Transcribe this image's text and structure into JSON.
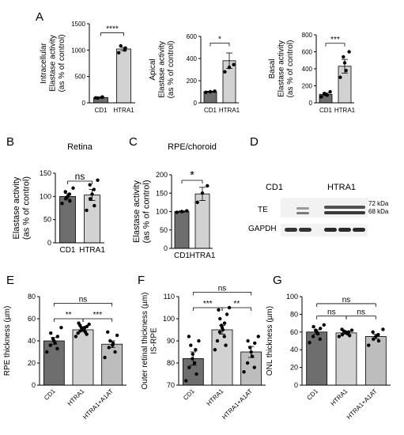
{
  "chart_data": [
    {
      "panel": "A",
      "type": "bar",
      "title": "",
      "ylabel_lines": [
        "Intracellular",
        "Elastase activity",
        "(as % of control)"
      ],
      "categories": [
        "CD1",
        "HTRA1"
      ],
      "values": [
        100,
        1020
      ],
      "error": [
        10,
        30
      ],
      "points": [
        [
          95,
          105,
          110,
          90
        ],
        [
          950,
          1000,
          1040,
          1080
        ]
      ],
      "bar_colors": [
        "#6e6e6e",
        "#d2d2d2"
      ],
      "ylim": [
        0,
        1500
      ],
      "yticks": [
        0,
        500,
        1000,
        1500
      ],
      "significance": [
        {
          "from": 0,
          "to": 1,
          "label": "****",
          "y": 1330
        }
      ]
    },
    {
      "panel": "A",
      "type": "bar",
      "title": "",
      "ylabel_lines": [
        "Apical",
        "Elastase activity",
        "(as % of control)"
      ],
      "categories": [
        "CD1",
        "HTRA1"
      ],
      "values": [
        100,
        380
      ],
      "error": [
        5,
        70
      ],
      "points": [
        [
          95,
          100,
          105
        ],
        [
          280,
          320,
          345
        ]
      ],
      "bar_colors": [
        "#6e6e6e",
        "#d2d2d2"
      ],
      "ylim": [
        0,
        600
      ],
      "yticks": [
        0,
        200,
        400,
        600
      ],
      "significance": [
        {
          "from": 0,
          "to": 1,
          "label": "*",
          "y": 540
        }
      ]
    },
    {
      "panel": "A",
      "type": "bar",
      "title": "",
      "ylabel_lines": [
        "Basal",
        "Elastase activity",
        "(as % of control)"
      ],
      "categories": [
        "CD1",
        "HTRA1"
      ],
      "values": [
        100,
        430
      ],
      "error": [
        15,
        80
      ],
      "points": [
        [
          70,
          90,
          100,
          110,
          130
        ],
        [
          300,
          380,
          470,
          540,
          600
        ]
      ],
      "bar_colors": [
        "#6e6e6e",
        "#d2d2d2"
      ],
      "ylim": [
        0,
        800
      ],
      "yticks": [
        0,
        200,
        400,
        600,
        800
      ],
      "significance": [
        {
          "from": 0,
          "to": 1,
          "label": "***",
          "y": 700
        }
      ]
    },
    {
      "panel": "B",
      "type": "bar",
      "title": "Retina",
      "ylabel_lines": [
        "Elastase activity",
        "(as % of control)"
      ],
      "categories": [
        "CD1",
        "HTRA1"
      ],
      "values": [
        100,
        103
      ],
      "error": [
        6,
        12
      ],
      "points": [
        [
          85,
          90,
          95,
          100,
          105,
          110,
          118
        ],
        [
          70,
          80,
          95,
          105,
          115,
          125,
          135
        ]
      ],
      "bar_colors": [
        "#6e6e6e",
        "#d2d2d2"
      ],
      "ylim": [
        0,
        150
      ],
      "yticks": [
        0,
        50,
        100,
        150
      ],
      "significance": [
        {
          "from": 0,
          "to": 1,
          "label": "ns",
          "y": 133
        }
      ]
    },
    {
      "panel": "C",
      "type": "bar",
      "title": "RPE/choroid",
      "ylabel_lines": [
        "Elastase activity",
        "(as % of control)"
      ],
      "categories": [
        "CD1",
        "HTRA1"
      ],
      "values": [
        100,
        148
      ],
      "error": [
        2,
        18
      ],
      "points": [
        [
          98,
          100,
          102
        ],
        [
          125,
          150,
          170
        ]
      ],
      "bar_colors": [
        "#6e6e6e",
        "#d2d2d2"
      ],
      "ylim": [
        0,
        200
      ],
      "yticks": [
        0,
        50,
        100,
        150,
        200
      ],
      "significance": [
        {
          "from": 0,
          "to": 1,
          "label": "*",
          "y": 185
        }
      ]
    },
    {
      "panel": "E",
      "type": "bar",
      "title": "",
      "ylabel_lines": [
        "RPE thickness (µm)"
      ],
      "categories": [
        "CD1",
        "HTRA1",
        "HTRA1+A1AT"
      ],
      "values": [
        40,
        50,
        37
      ],
      "error": [
        3,
        1.5,
        3
      ],
      "points": [
        [
          30,
          33,
          36,
          38,
          40,
          42,
          44,
          47,
          52
        ],
        [
          44,
          46,
          47,
          48,
          49,
          50,
          50,
          51,
          52,
          52,
          53,
          54,
          55,
          56
        ],
        [
          25,
          30,
          34,
          36,
          38,
          40,
          45,
          48
        ]
      ],
      "bar_colors": [
        "#6e6e6e",
        "#d2d2d2",
        "#bdbdbd"
      ],
      "ylim": [
        0,
        80
      ],
      "yticks": [
        0,
        20,
        40,
        60,
        80
      ],
      "significance": [
        {
          "from": 0,
          "to": 1,
          "label": "**",
          "y": 60
        },
        {
          "from": 1,
          "to": 2,
          "label": "***",
          "y": 60
        },
        {
          "from": 0,
          "to": 2,
          "label": "ns",
          "y": 74
        }
      ]
    },
    {
      "panel": "F",
      "type": "bar",
      "title": "",
      "ylabel_lines": [
        "Outer retinal thickness (µm)",
        "IS-RPE"
      ],
      "categories": [
        "CD1",
        "HTRA1",
        "HTRA1+A1AT"
      ],
      "values": [
        82,
        95,
        85
      ],
      "error": [
        3,
        2,
        2.5
      ],
      "points": [
        [
          72,
          75,
          78,
          80,
          82,
          84,
          86,
          88,
          90,
          92
        ],
        [
          86,
          88,
          90,
          92,
          94,
          95,
          96,
          97,
          98,
          100,
          102,
          104,
          105
        ],
        [
          76,
          78,
          80,
          83,
          85,
          87,
          89,
          90,
          92
        ]
      ],
      "bar_colors": [
        "#6e6e6e",
        "#d2d2d2",
        "#bdbdbd"
      ],
      "ylim": [
        70,
        110
      ],
      "yticks": [
        70,
        80,
        90,
        100,
        110
      ],
      "significance": [
        {
          "from": 0,
          "to": 1,
          "label": "***",
          "y": 105
        },
        {
          "from": 1,
          "to": 2,
          "label": "**",
          "y": 105
        },
        {
          "from": 0,
          "to": 2,
          "label": "ns",
          "y": 112
        }
      ]
    },
    {
      "panel": "G",
      "type": "bar",
      "title": "",
      "ylabel_lines": [
        "ONL thickness (µm)"
      ],
      "categories": [
        "CD1",
        "HTRA1",
        "HTRA1+A1AT"
      ],
      "values": [
        60,
        59,
        55
      ],
      "error": [
        2.5,
        1,
        2.5
      ],
      "points": [
        [
          48,
          52,
          55,
          58,
          60,
          62,
          64,
          66,
          68
        ],
        [
          55,
          56,
          57,
          58,
          59,
          60,
          60,
          61,
          62,
          63
        ],
        [
          45,
          50,
          52,
          55,
          57,
          60,
          63
        ]
      ],
      "bar_colors": [
        "#6e6e6e",
        "#d2d2d2",
        "#bdbdbd"
      ],
      "ylim": [
        0,
        100
      ],
      "yticks": [
        0,
        20,
        40,
        60,
        80,
        100
      ],
      "significance": [
        {
          "from": 0,
          "to": 1,
          "label": "ns",
          "y": 78
        },
        {
          "from": 1,
          "to": 2,
          "label": "ns",
          "y": 78
        },
        {
          "from": 0,
          "to": 2,
          "label": "ns",
          "y": 92
        }
      ]
    }
  ],
  "panel_letters": [
    "A",
    "B",
    "C",
    "D",
    "E",
    "F",
    "G"
  ],
  "blot": {
    "groups": [
      "CD1",
      "HTRA1"
    ],
    "rows": [
      "TE",
      "GAPDH"
    ],
    "markers": [
      "72 kDa",
      "68 kDa"
    ]
  }
}
